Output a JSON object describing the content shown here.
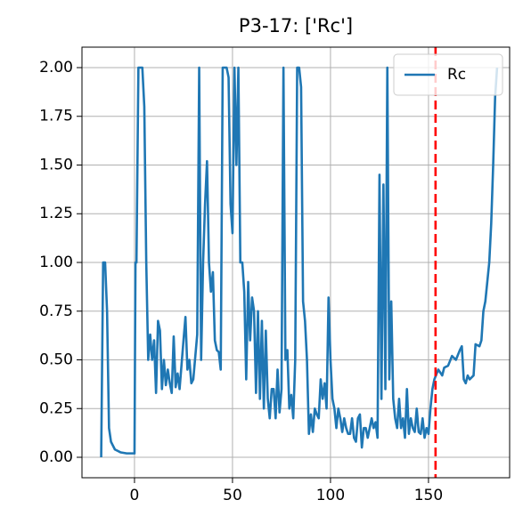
{
  "chart_data": {
    "type": "line",
    "title": "P3-17: ['Rc']",
    "x": [
      -17,
      -16,
      -15,
      -14,
      -13,
      -12,
      -10,
      -7,
      -4,
      -1,
      0,
      0.5,
      1,
      2,
      4,
      5,
      6,
      7,
      8,
      9,
      10,
      11,
      12,
      13,
      14,
      15,
      16,
      17,
      18,
      19,
      20,
      21,
      22,
      23,
      25,
      26,
      27,
      28,
      29,
      30,
      32,
      33,
      34,
      35,
      36,
      37,
      38,
      39,
      40,
      41,
      42,
      43,
      44,
      45,
      47,
      48,
      49,
      50,
      51,
      52,
      53,
      54,
      55,
      56,
      57,
      58,
      59,
      60,
      61,
      62,
      63,
      64,
      65,
      66,
      67,
      68,
      69,
      70,
      71,
      72,
      73,
      74,
      75,
      76,
      77,
      78,
      79,
      80,
      81,
      82,
      83,
      84,
      85,
      86,
      87,
      88,
      89,
      90,
      91,
      92,
      93,
      94,
      95,
      96,
      97,
      98,
      99,
      100,
      101,
      102,
      103,
      104,
      105,
      106,
      107,
      108,
      109,
      110,
      111,
      112,
      113,
      114,
      115,
      116,
      117,
      118,
      119,
      120,
      121,
      122,
      123,
      124,
      125,
      126,
      127,
      128,
      129,
      130,
      131,
      132,
      133,
      134,
      135,
      136,
      137,
      138,
      139,
      140,
      141,
      142,
      143,
      144,
      145,
      146,
      147,
      148,
      149,
      150,
      151,
      152,
      153,
      155,
      157,
      158,
      160,
      162,
      164,
      166,
      167,
      168,
      169,
      170,
      171,
      173,
      174,
      176,
      177,
      178,
      179,
      180,
      181,
      182,
      183,
      184,
      185
    ],
    "series": [
      {
        "name": "Rc",
        "color": "#1f77b4",
        "values": [
          0,
          1.0,
          1.0,
          0.75,
          0.15,
          0.08,
          0.04,
          0.025,
          0.02,
          0.02,
          0.02,
          1.0,
          1.0,
          2.0,
          2.0,
          1.8,
          1.0,
          0.5,
          0.63,
          0.5,
          0.6,
          0.33,
          0.7,
          0.65,
          0.35,
          0.5,
          0.37,
          0.45,
          0.38,
          0.33,
          0.62,
          0.36,
          0.43,
          0.35,
          0.6,
          0.72,
          0.45,
          0.5,
          0.38,
          0.4,
          0.63,
          2.0,
          0.5,
          1.0,
          1.3,
          1.52,
          1.0,
          0.85,
          0.95,
          0.6,
          0.55,
          0.54,
          0.45,
          2.0,
          2.0,
          1.95,
          1.3,
          1.15,
          2.0,
          1.5,
          2.0,
          1.0,
          1.0,
          0.85,
          0.4,
          0.9,
          0.6,
          0.82,
          0.75,
          0.33,
          0.75,
          0.3,
          0.7,
          0.25,
          0.65,
          0.3,
          0.2,
          0.35,
          0.35,
          0.2,
          0.45,
          0.23,
          0.35,
          2.0,
          0.5,
          0.55,
          0.25,
          0.32,
          0.2,
          0.5,
          2.0,
          2.0,
          1.9,
          0.8,
          0.7,
          0.5,
          0.12,
          0.22,
          0.13,
          0.25,
          0.22,
          0.2,
          0.4,
          0.3,
          0.38,
          0.25,
          0.82,
          0.5,
          0.3,
          0.25,
          0.15,
          0.25,
          0.2,
          0.13,
          0.2,
          0.15,
          0.12,
          0.12,
          0.2,
          0.1,
          0.08,
          0.2,
          0.22,
          0.05,
          0.15,
          0.15,
          0.1,
          0.15,
          0.2,
          0.15,
          0.18,
          0.1,
          1.45,
          0.3,
          1.4,
          0.35,
          2.0,
          0.4,
          0.8,
          0.3,
          0.2,
          0.15,
          0.3,
          0.15,
          0.2,
          0.1,
          0.35,
          0.12,
          0.2,
          0.15,
          0.13,
          0.25,
          0.13,
          0.12,
          0.2,
          0.1,
          0.15,
          0.12,
          0.25,
          0.35,
          0.4,
          0.45,
          0.42,
          0.46,
          0.47,
          0.52,
          0.5,
          0.55,
          0.57,
          0.4,
          0.38,
          0.42,
          0.4,
          0.42,
          0.58,
          0.57,
          0.6,
          0.75,
          0.8,
          0.9,
          1.0,
          1.2,
          1.5,
          1.85,
          2.0
        ]
      }
    ],
    "vline": {
      "x": 153.6,
      "color": "#ff0000"
    },
    "xlim": [
      -26.8,
      191.4
    ],
    "xticks": [
      0,
      50,
      100,
      150
    ],
    "ylim": [
      -0.105,
      2.105
    ],
    "yticks": [
      {
        "value": 0,
        "label": "0.00"
      },
      {
        "value": 0.25,
        "label": "0.25"
      },
      {
        "value": 0.5,
        "label": "0.50"
      },
      {
        "value": 0.75,
        "label": "0.75"
      },
      {
        "value": 1,
        "label": "1.00"
      },
      {
        "value": 1.25,
        "label": "1.25"
      },
      {
        "value": 1.5,
        "label": "1.50"
      },
      {
        "value": 1.75,
        "label": "1.75"
      },
      {
        "value": 2,
        "label": "2.00"
      }
    ],
    "grid": true,
    "legend": "upper right"
  }
}
